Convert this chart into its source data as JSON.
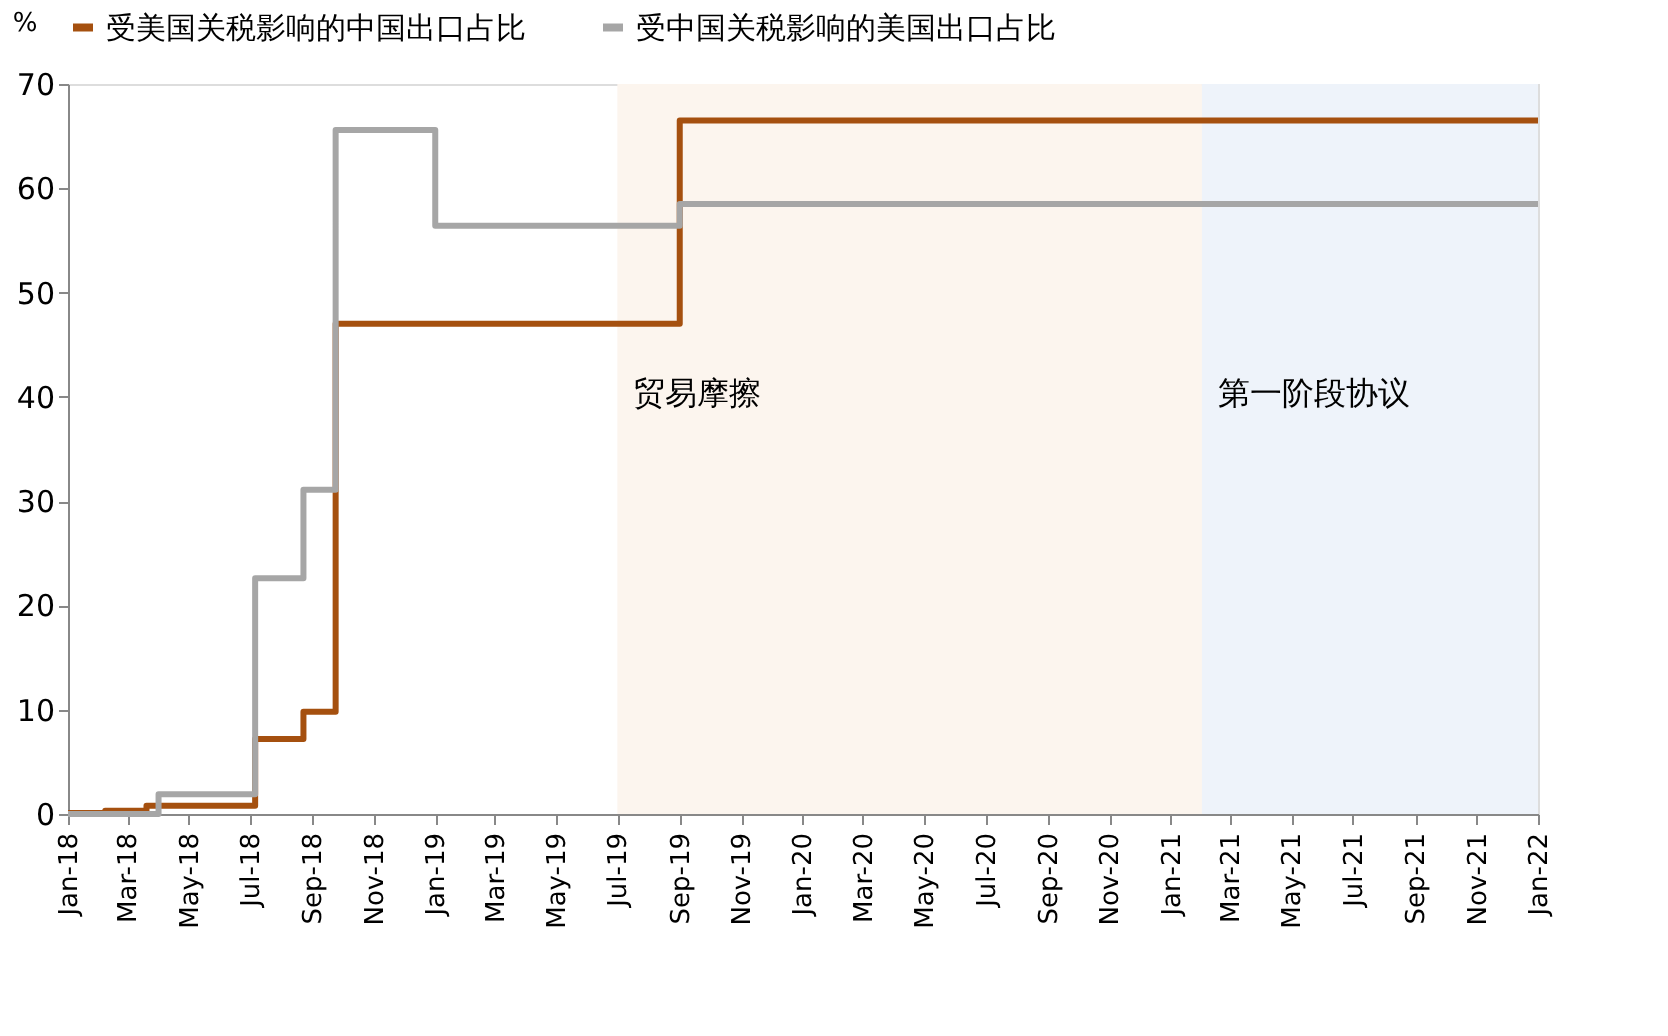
{
  "chart_data": {
    "type": "step",
    "ylabel": "%",
    "legend": "top",
    "series": [
      {
        "name": "受美国关税影响的中国出口占比",
        "color": "#a5500f",
        "x": [
          "2018-01-01",
          "2018-02-07",
          "2018-03-20",
          "2018-07-06",
          "2018-08-23",
          "2018-09-24",
          "2019-09-01",
          "2022-01-01"
        ],
        "values": [
          0.1,
          0.3,
          0.8,
          7.2,
          9.8,
          47.0,
          66.5,
          66.5
        ]
      },
      {
        "name": "受中国关税影响的美国出口占比",
        "color": "#a6a6a6",
        "x": [
          "2018-01-01",
          "2018-04-01",
          "2018-07-06",
          "2018-08-23",
          "2018-09-24",
          "2019-01-01",
          "2019-09-01",
          "2022-01-01"
        ],
        "values": [
          0,
          1.9,
          22.6,
          31.1,
          65.6,
          56.4,
          58.5,
          58.5
        ]
      }
    ],
    "bands": [
      {
        "axis": "x",
        "from": "2019-07-01",
        "to": "2021-02-01",
        "label": "贸易摩擦",
        "color": "#fcf5ee"
      },
      {
        "axis": "x",
        "from": "2021-02-01",
        "to": "2022-01-01",
        "label": "第一阶段协议",
        "color": "#eef3fa"
      }
    ],
    "xlim": [
      "2018-01-01",
      "2022-01-01"
    ],
    "xticks": [
      {
        "value": "2018-01-01",
        "label": "Jan-18"
      },
      {
        "value": "2018-03-01",
        "label": "Mar-18"
      },
      {
        "value": "2018-05-01",
        "label": "May-18"
      },
      {
        "value": "2018-07-01",
        "label": "Jul-18"
      },
      {
        "value": "2018-09-01",
        "label": "Sep-18"
      },
      {
        "value": "2018-11-01",
        "label": "Nov-18"
      },
      {
        "value": "2019-01-01",
        "label": "Jan-19"
      },
      {
        "value": "2019-03-01",
        "label": "Mar-19"
      },
      {
        "value": "2019-05-01",
        "label": "May-19"
      },
      {
        "value": "2019-07-01",
        "label": "Jul-19"
      },
      {
        "value": "2019-09-01",
        "label": "Sep-19"
      },
      {
        "value": "2019-11-01",
        "label": "Nov-19"
      },
      {
        "value": "2020-01-01",
        "label": "Jan-20"
      },
      {
        "value": "2020-03-01",
        "label": "Mar-20"
      },
      {
        "value": "2020-05-01",
        "label": "May-20"
      },
      {
        "value": "2020-07-01",
        "label": "Jul-20"
      },
      {
        "value": "2020-09-01",
        "label": "Sep-20"
      },
      {
        "value": "2020-11-01",
        "label": "Nov-20"
      },
      {
        "value": "2021-01-01",
        "label": "Jan-21"
      },
      {
        "value": "2021-03-01",
        "label": "Mar-21"
      },
      {
        "value": "2021-05-01",
        "label": "May-21"
      },
      {
        "value": "2021-07-01",
        "label": "Jul-21"
      },
      {
        "value": "2021-09-01",
        "label": "Sep-21"
      },
      {
        "value": "2021-11-01",
        "label": "Nov-21"
      },
      {
        "value": "2022-01-01",
        "label": "Jan-22"
      }
    ],
    "ylim": [
      0,
      70
    ],
    "yticks": [
      0,
      10,
      20,
      30,
      40,
      50,
      60,
      70
    ],
    "grid": false
  }
}
